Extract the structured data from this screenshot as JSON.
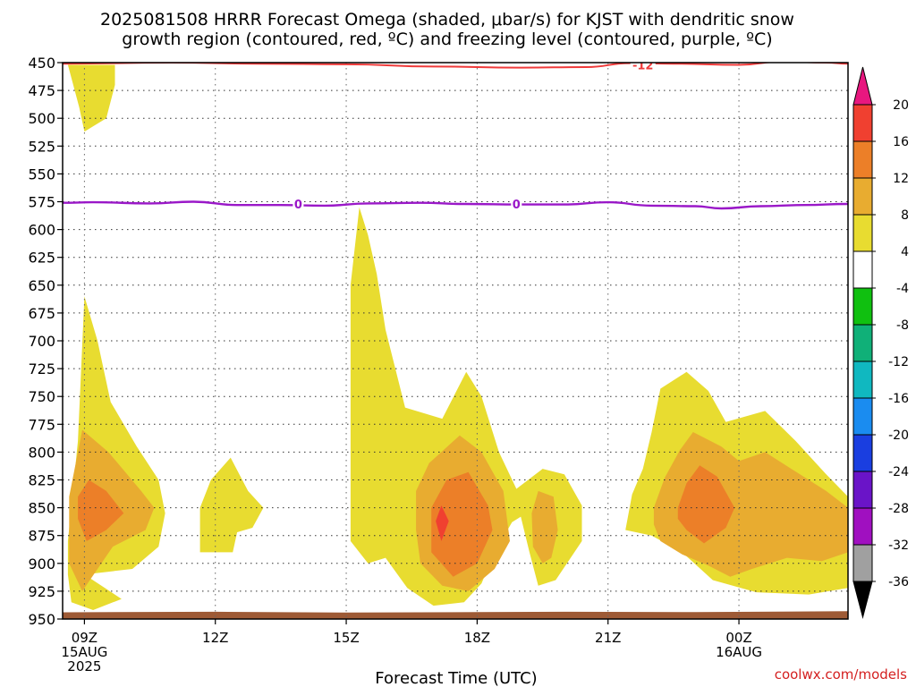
{
  "chart_data": {
    "type": "heatmap",
    "title_lines": [
      "2025081508 HRRR Forecast Omega (shaded, μbar/s) for KJST with dendritic snow",
      "growth region (contoured, red, ºC) and freezing level (contoured, purple, ºC)"
    ],
    "xlabel": "Forecast Time (UTC)",
    "ylabel": "",
    "credit": "coolwx.com/models",
    "y_axis": {
      "unit": "mb",
      "range": [
        450,
        950
      ],
      "inverted": true,
      "ticks": [
        450,
        475,
        500,
        525,
        550,
        575,
        600,
        625,
        650,
        675,
        700,
        725,
        750,
        775,
        800,
        825,
        850,
        875,
        900,
        925,
        950
      ]
    },
    "x_axis": {
      "unit": "forecast hour",
      "range": [
        0.5,
        18.5
      ],
      "ticks": [
        {
          "hour": 1,
          "lines": [
            "09Z",
            "15AUG",
            "2025"
          ]
        },
        {
          "hour": 4,
          "lines": [
            "12Z"
          ]
        },
        {
          "hour": 7,
          "lines": [
            "15Z"
          ]
        },
        {
          "hour": 10,
          "lines": [
            "18Z"
          ]
        },
        {
          "hour": 13,
          "lines": [
            "21Z"
          ]
        },
        {
          "hour": 16,
          "lines": [
            "00Z",
            "16AUG"
          ]
        }
      ]
    },
    "grid": true,
    "colorbar": {
      "labels": [
        "20",
        "16",
        "12",
        "8",
        "4",
        "-4",
        "-8",
        "-12",
        "-16",
        "-20",
        "-24",
        "-28",
        "-32",
        "-36"
      ],
      "colors": [
        "#e8177f",
        "#f04030",
        "#ec7f28",
        "#e8ac30",
        "#e8dc30",
        "#ffffff",
        "#10c010",
        "#10b078",
        "#10b8c0",
        "#1a8cf0",
        "#1a3ee0",
        "#6a14c8",
        "#a010c0",
        "#a0a0a0",
        "#000000"
      ]
    },
    "shading_levels": [
      {
        "range": [
          4,
          8
        ],
        "color": "#e8dc30"
      },
      {
        "range": [
          8,
          12
        ],
        "color": "#e8ac30"
      },
      {
        "range": [
          12,
          16
        ],
        "color": "#ec7f28"
      },
      {
        "range": [
          16,
          20
        ],
        "color": "#f04030"
      }
    ],
    "omega_regions": [
      {
        "level": 4,
        "points": [
          [
            0.62,
            452
          ],
          [
            1.7,
            452
          ],
          [
            1.7,
            470
          ],
          [
            1.5,
            500
          ],
          [
            1.0,
            512
          ],
          [
            0.88,
            490
          ],
          [
            0.62,
            452
          ]
        ]
      },
      {
        "level": 4,
        "points": [
          [
            0.62,
            880
          ],
          [
            0.85,
            790
          ],
          [
            1.0,
            660
          ],
          [
            1.3,
            700
          ],
          [
            1.6,
            755
          ],
          [
            2.2,
            795
          ],
          [
            2.7,
            825
          ],
          [
            2.85,
            855
          ],
          [
            2.7,
            885
          ],
          [
            2.1,
            905
          ],
          [
            1.0,
            910
          ],
          [
            1.85,
            932
          ],
          [
            1.2,
            942
          ],
          [
            0.7,
            935
          ],
          [
            0.62,
            910
          ],
          [
            0.62,
            880
          ]
        ]
      },
      {
        "level": 8,
        "points": [
          [
            0.65,
            840
          ],
          [
            0.95,
            780
          ],
          [
            1.55,
            800
          ],
          [
            2.3,
            835
          ],
          [
            2.6,
            850
          ],
          [
            2.4,
            870
          ],
          [
            1.65,
            885
          ],
          [
            0.95,
            925
          ],
          [
            0.65,
            900
          ],
          [
            0.65,
            840
          ]
        ]
      },
      {
        "level": 12,
        "points": [
          [
            0.85,
            840
          ],
          [
            1.1,
            825
          ],
          [
            1.5,
            835
          ],
          [
            1.9,
            855
          ],
          [
            1.5,
            870
          ],
          [
            1.05,
            880
          ],
          [
            0.85,
            860
          ],
          [
            0.85,
            840
          ]
        ]
      },
      {
        "level": 4,
        "points": [
          [
            3.65,
            850
          ],
          [
            3.9,
            825
          ],
          [
            4.35,
            805
          ],
          [
            4.75,
            835
          ],
          [
            5.1,
            850
          ],
          [
            4.85,
            868
          ],
          [
            4.5,
            872
          ],
          [
            4.4,
            890
          ],
          [
            3.65,
            890
          ],
          [
            3.65,
            850
          ]
        ]
      },
      {
        "level": 4,
        "points": [
          [
            7.1,
            880
          ],
          [
            7.1,
            650
          ],
          [
            7.3,
            580
          ],
          [
            7.5,
            605
          ],
          [
            7.7,
            640
          ],
          [
            7.9,
            690
          ],
          [
            8.35,
            760
          ],
          [
            9.2,
            770
          ],
          [
            9.75,
            728
          ],
          [
            10.1,
            750
          ],
          [
            10.5,
            800
          ],
          [
            10.9,
            833
          ],
          [
            11.5,
            815
          ],
          [
            12.0,
            820
          ],
          [
            12.4,
            848
          ],
          [
            12.4,
            880
          ],
          [
            11.8,
            915
          ],
          [
            11.4,
            920
          ],
          [
            11.2,
            890
          ],
          [
            11.0,
            858
          ],
          [
            10.8,
            863
          ],
          [
            10.4,
            890
          ],
          [
            10.1,
            918
          ],
          [
            9.7,
            935
          ],
          [
            9.0,
            938
          ],
          [
            8.4,
            922
          ],
          [
            7.9,
            895
          ],
          [
            7.5,
            900
          ],
          [
            7.1,
            880
          ]
        ]
      },
      {
        "level": 8,
        "points": [
          [
            8.6,
            835
          ],
          [
            8.9,
            810
          ],
          [
            9.6,
            785
          ],
          [
            10.1,
            800
          ],
          [
            10.6,
            835
          ],
          [
            10.75,
            880
          ],
          [
            10.4,
            905
          ],
          [
            9.8,
            925
          ],
          [
            9.2,
            920
          ],
          [
            8.7,
            900
          ],
          [
            8.6,
            870
          ],
          [
            8.6,
            835
          ]
        ]
      },
      {
        "level": 12,
        "points": [
          [
            8.95,
            850
          ],
          [
            9.3,
            825
          ],
          [
            9.8,
            818
          ],
          [
            10.25,
            848
          ],
          [
            10.35,
            870
          ],
          [
            10.0,
            900
          ],
          [
            9.45,
            912
          ],
          [
            8.95,
            890
          ],
          [
            8.95,
            850
          ]
        ]
      },
      {
        "level": 16,
        "points": [
          [
            9.05,
            862
          ],
          [
            9.18,
            848
          ],
          [
            9.35,
            862
          ],
          [
            9.18,
            880
          ],
          [
            9.05,
            862
          ]
        ]
      },
      {
        "level": 8,
        "points": [
          [
            11.25,
            855
          ],
          [
            11.4,
            835
          ],
          [
            11.75,
            840
          ],
          [
            11.85,
            870
          ],
          [
            11.7,
            895
          ],
          [
            11.5,
            900
          ],
          [
            11.28,
            885
          ],
          [
            11.25,
            855
          ]
        ]
      },
      {
        "level": 4,
        "points": [
          [
            13.4,
            870
          ],
          [
            13.55,
            838
          ],
          [
            13.8,
            815
          ],
          [
            14.0,
            782
          ],
          [
            14.2,
            743
          ],
          [
            14.8,
            728
          ],
          [
            15.3,
            745
          ],
          [
            15.7,
            773
          ],
          [
            16.6,
            763
          ],
          [
            17.3,
            790
          ],
          [
            18.0,
            820
          ],
          [
            18.5,
            840
          ],
          [
            18.5,
            922
          ],
          [
            17.6,
            928
          ],
          [
            16.4,
            926
          ],
          [
            15.4,
            915
          ],
          [
            14.7,
            890
          ],
          [
            14.0,
            875
          ],
          [
            13.4,
            870
          ]
        ]
      },
      {
        "level": 8,
        "points": [
          [
            14.05,
            850
          ],
          [
            14.3,
            823
          ],
          [
            14.65,
            798
          ],
          [
            14.95,
            782
          ],
          [
            15.6,
            795
          ],
          [
            16.0,
            808
          ],
          [
            16.6,
            800
          ],
          [
            17.2,
            815
          ],
          [
            18.0,
            835
          ],
          [
            18.5,
            850
          ],
          [
            18.5,
            890
          ],
          [
            17.9,
            898
          ],
          [
            17.1,
            895
          ],
          [
            16.3,
            905
          ],
          [
            15.8,
            912
          ],
          [
            15.3,
            902
          ],
          [
            14.7,
            892
          ],
          [
            14.2,
            880
          ],
          [
            14.05,
            865
          ],
          [
            14.05,
            850
          ]
        ]
      },
      {
        "level": 12,
        "points": [
          [
            14.6,
            850
          ],
          [
            14.8,
            828
          ],
          [
            15.1,
            812
          ],
          [
            15.5,
            822
          ],
          [
            15.9,
            850
          ],
          [
            15.7,
            868
          ],
          [
            15.2,
            882
          ],
          [
            14.8,
            870
          ],
          [
            14.6,
            860
          ],
          [
            14.6,
            850
          ]
        ]
      }
    ],
    "dgz_contour": {
      "color": "#f03a3a",
      "label": "-12",
      "label_at": [
        13.8,
        452
      ],
      "points": [
        [
          0.5,
          451
        ],
        [
          3.0,
          450
        ],
        [
          5.0,
          451
        ],
        [
          7.0,
          451.5
        ],
        [
          9.0,
          453.5
        ],
        [
          11.0,
          454.5
        ],
        [
          12.5,
          454
        ],
        [
          13.5,
          450.5
        ],
        [
          14.5,
          451
        ],
        [
          16.0,
          452
        ],
        [
          17.0,
          449
        ],
        [
          18.0,
          450
        ],
        [
          18.5,
          451
        ]
      ]
    },
    "freezing_contour": {
      "color": "#9a18c8",
      "label": "0",
      "label_positions": [
        [
          5.9,
          577
        ],
        [
          10.9,
          577
        ]
      ],
      "points": [
        [
          0.5,
          576
        ],
        [
          1.2,
          575.5
        ],
        [
          2.5,
          576.5
        ],
        [
          3.5,
          575
        ],
        [
          4.5,
          578
        ],
        [
          5.5,
          578
        ],
        [
          6.5,
          578.5
        ],
        [
          7.5,
          576.5
        ],
        [
          8.7,
          576
        ],
        [
          9.7,
          577
        ],
        [
          11.0,
          577.5
        ],
        [
          12.0,
          577.5
        ],
        [
          13.0,
          575.5
        ],
        [
          14.0,
          578.5
        ],
        [
          15.0,
          579
        ],
        [
          15.6,
          581
        ],
        [
          16.5,
          579
        ],
        [
          17.5,
          578
        ],
        [
          18.5,
          577
        ]
      ]
    },
    "terrain_fill": {
      "color": "#9e5a35",
      "points": [
        [
          0.5,
          944
        ],
        [
          4.0,
          943.5
        ],
        [
          7.0,
          944.2
        ],
        [
          10.0,
          943.8
        ],
        [
          12.0,
          943.5
        ],
        [
          15.0,
          943.8
        ],
        [
          18.5,
          943
        ]
      ]
    }
  }
}
